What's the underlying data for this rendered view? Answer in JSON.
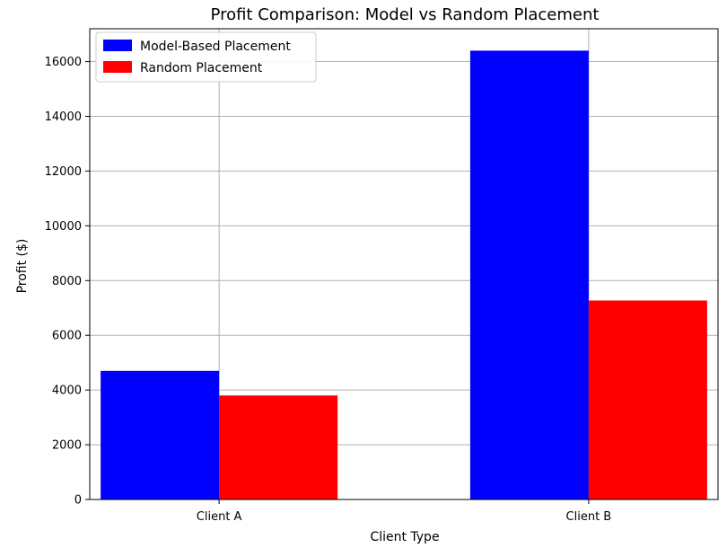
{
  "chart_data": {
    "type": "bar",
    "title": "Profit Comparison: Model vs Random Placement",
    "xlabel": "Client Type",
    "ylabel": "Profit ($)",
    "categories": [
      "Client A",
      "Client B"
    ],
    "series": [
      {
        "name": "Model-Based Placement",
        "color": "#0000ff",
        "values": [
          4700,
          16400
        ]
      },
      {
        "name": "Random Placement",
        "color": "#ff0000",
        "values": [
          3800,
          7270
        ]
      }
    ],
    "ylim": [
      0,
      17200
    ],
    "yticks": [
      0,
      2000,
      4000,
      6000,
      8000,
      10000,
      12000,
      14000,
      16000
    ],
    "grid": true,
    "legend_position": "top-left"
  }
}
